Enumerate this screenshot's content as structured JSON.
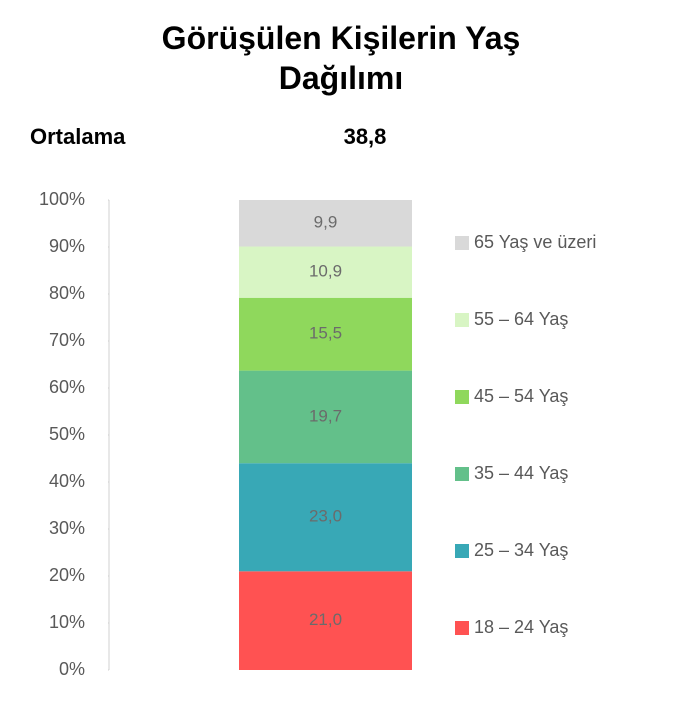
{
  "chart_data": {
    "type": "stacked-bar",
    "title": "Görüşülen Kişilerin Yaş Dağılımı",
    "annotations": [
      "Ortalama",
      "38,8"
    ],
    "ylim": [
      0,
      100
    ],
    "yticks": [
      {
        "value": 0,
        "label": "0%"
      },
      {
        "value": 10,
        "label": "10%"
      },
      {
        "value": 20,
        "label": "20%"
      },
      {
        "value": 30,
        "label": "30%"
      },
      {
        "value": 40,
        "label": "40%"
      },
      {
        "value": 50,
        "label": "50%"
      },
      {
        "value": 60,
        "label": "60%"
      },
      {
        "value": 70,
        "label": "70%"
      },
      {
        "value": 80,
        "label": "80%"
      },
      {
        "value": 90,
        "label": "90%"
      },
      {
        "value": 100,
        "label": "100%"
      }
    ],
    "series": [
      {
        "name": "18 – 24 Yaş",
        "color": "#ff5252",
        "values": [
          21.0
        ],
        "value_labels": [
          "21,0"
        ]
      },
      {
        "name": "25 – 34 Yaş",
        "color": "#38a8b6",
        "values": [
          23.0
        ],
        "value_labels": [
          "23,0"
        ]
      },
      {
        "name": "35 – 44 Yaş",
        "color": "#63c08a",
        "values": [
          19.7
        ],
        "value_labels": [
          "19,7"
        ]
      },
      {
        "name": "45 – 54 Yaş",
        "color": "#8fd85c",
        "values": [
          15.5
        ],
        "value_labels": [
          "15,5"
        ]
      },
      {
        "name": "55 – 64 Yaş",
        "color": "#d8f5c4",
        "values": [
          10.9
        ],
        "value_labels": [
          "10,9"
        ]
      },
      {
        "name": "65 Yaş ve üzeri",
        "color": "#d9d9d9",
        "values": [
          9.9
        ],
        "value_labels": [
          "9,9"
        ]
      }
    ]
  }
}
